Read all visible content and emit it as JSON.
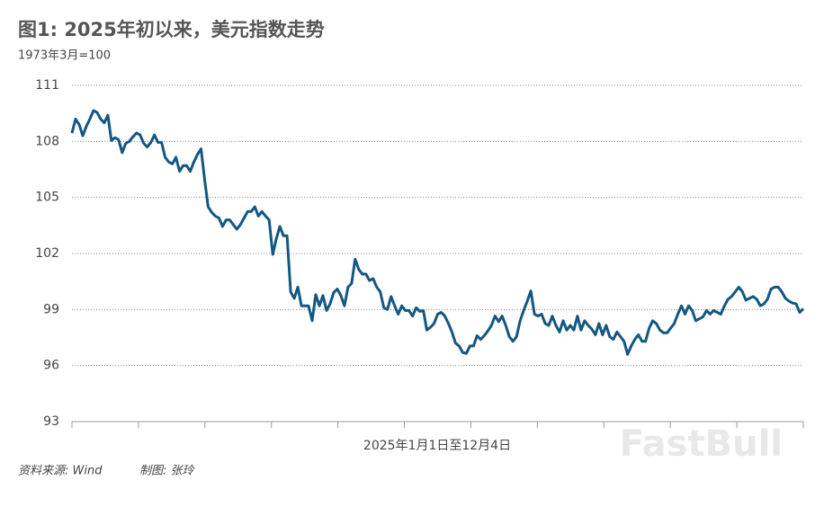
{
  "chart_data": {
    "type": "line",
    "title": "图1: 2025年初以来，美元指数走势",
    "subtitle": "1973年3月=100",
    "xlabel": "2025年1月1日至12月4日",
    "source": "资料来源: Wind",
    "author": "制图: 张玲",
    "watermark": "FastBull",
    "color": "#135783",
    "grid": true,
    "ylim": [
      93,
      111
    ],
    "yticks": [
      93,
      96,
      99,
      102,
      105,
      108,
      111
    ],
    "values": [
      108.45,
      109.2,
      108.9,
      108.3,
      108.8,
      109.2,
      109.65,
      109.55,
      109.2,
      109.0,
      109.4,
      108.05,
      108.2,
      108.1,
      107.4,
      107.9,
      108.0,
      108.25,
      108.45,
      108.35,
      107.9,
      107.7,
      107.95,
      108.35,
      107.95,
      107.95,
      107.15,
      106.9,
      106.8,
      107.15,
      106.4,
      106.7,
      106.7,
      106.4,
      106.9,
      107.3,
      107.6,
      105.95,
      104.5,
      104.2,
      104.0,
      103.9,
      103.45,
      103.8,
      103.8,
      103.55,
      103.3,
      103.55,
      103.9,
      104.25,
      104.25,
      104.5,
      104.0,
      104.25,
      104.0,
      103.8,
      101.95,
      102.8,
      103.45,
      102.95,
      102.95,
      99.95,
      99.6,
      100.2,
      99.2,
      99.2,
      99.2,
      98.4,
      99.8,
      99.2,
      99.75,
      98.95,
      99.3,
      99.9,
      100.1,
      99.75,
      99.2,
      100.2,
      100.4,
      101.7,
      101.15,
      100.9,
      100.9,
      100.55,
      100.65,
      100.2,
      99.95,
      99.1,
      99.0,
      99.7,
      99.2,
      98.75,
      99.2,
      98.95,
      98.95,
      98.65,
      99.1,
      98.9,
      98.95,
      97.9,
      98.05,
      98.25,
      98.75,
      98.85,
      98.65,
      98.25,
      97.8,
      97.2,
      97.05,
      96.7,
      96.65,
      97.05,
      97.05,
      97.6,
      97.4,
      97.6,
      97.85,
      98.15,
      98.65,
      98.35,
      98.65,
      98.15,
      97.55,
      97.3,
      97.55,
      98.4,
      98.95,
      99.45,
      100.0,
      98.75,
      98.65,
      98.75,
      98.25,
      98.15,
      98.65,
      98.15,
      97.8,
      98.4,
      97.9,
      98.15,
      97.9,
      98.65,
      97.9,
      98.4,
      98.15,
      97.95,
      97.65,
      98.25,
      97.65,
      98.15,
      97.55,
      97.4,
      97.8,
      97.55,
      97.3,
      96.6,
      97.05,
      97.4,
      97.65,
      97.3,
      97.3,
      98.0,
      98.4,
      98.25,
      97.9,
      97.75,
      97.75,
      98.0,
      98.25,
      98.75,
      99.2,
      98.75,
      99.2,
      98.95,
      98.4,
      98.5,
      98.6,
      98.95,
      98.75,
      98.95,
      98.85,
      98.75,
      99.2,
      99.55,
      99.7,
      99.95,
      100.2,
      99.95,
      99.5,
      99.6,
      99.7,
      99.55,
      99.2,
      99.3,
      99.55,
      100.1,
      100.2,
      100.2,
      99.95,
      99.6,
      99.45,
      99.35,
      99.3,
      98.85,
      99.05
    ]
  }
}
